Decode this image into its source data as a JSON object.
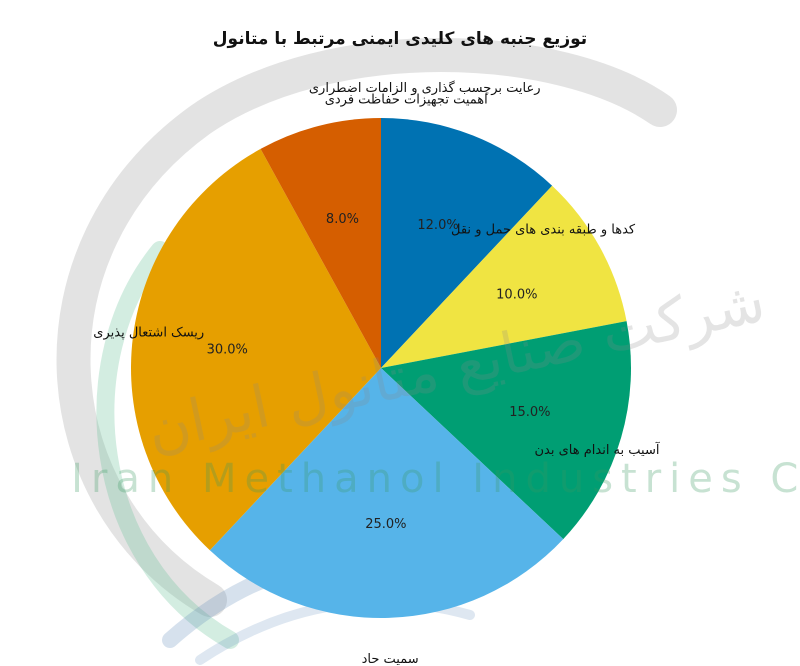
{
  "watermark": {
    "persian_text": "شرکت صنایع متانول ایران",
    "latin_text": "Iran Methanol Industries Co"
  },
  "chart_data": {
    "type": "pie",
    "title": "توزیع جنبه های کلیدی ایمنی مرتبط با متانول",
    "slices": [
      {
        "label": "اهمیت تجهیزات حفاظت فردی",
        "value": 12.0,
        "pct_text": "12.0%",
        "color": "#0072b2"
      },
      {
        "label": "کدها و طبقه بندی های حمل و نقل",
        "value": 10.0,
        "pct_text": "10.0%",
        "color": "#f0e442"
      },
      {
        "label": "آسیب به اندام های بدن",
        "value": 15.0,
        "pct_text": "15.0%",
        "color": "#009e73"
      },
      {
        "label": "سمیت حاد",
        "value": 25.0,
        "pct_text": "25.0%",
        "color": "#56b4e9"
      },
      {
        "label": "ریسک اشتعال پذیری",
        "value": 30.0,
        "pct_text": "30.0%",
        "color": "#e69f00"
      },
      {
        "label": "رعایت برچسب گذاری و الزامات اضطراری",
        "value": 8.0,
        "pct_text": "8.0%",
        "color": "#d55e00"
      }
    ],
    "start_angle_deg": 90,
    "direction": "clockwise",
    "legend": "none"
  }
}
